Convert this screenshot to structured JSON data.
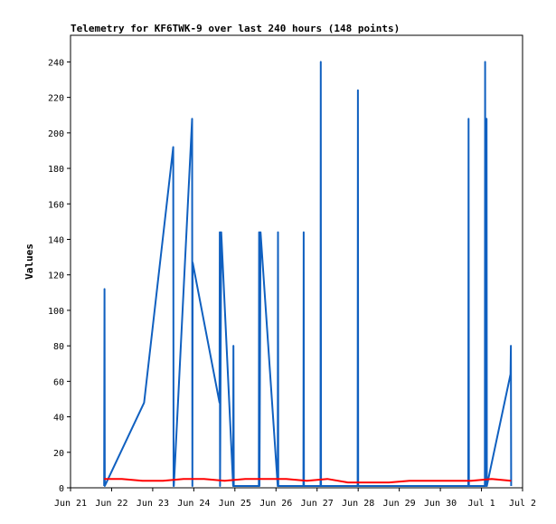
{
  "chart_data": {
    "type": "line",
    "title": "Telemetry for KF6TWK-9 over last 240 hours (148 points)",
    "xlabel": "",
    "ylabel": "Values",
    "ylim": [
      0,
      255
    ],
    "y_ticks": [
      0,
      20,
      40,
      60,
      80,
      100,
      120,
      140,
      160,
      180,
      200,
      220,
      240
    ],
    "xlim": [
      "Jun 21",
      "Jul 2"
    ],
    "x_tick_labels": [
      "Jun 21",
      "Jun 22",
      "Jun 23",
      "Jun 24",
      "Jun 25",
      "Jun 26",
      "Jun 27",
      "Jun 28",
      "Jun 29",
      "Jun 30",
      "Jul 1",
      "Jul 2"
    ],
    "grid": false,
    "series": [
      {
        "color": "#1060c0",
        "x": [
          "Jun 21 19:40",
          "Jun 21 19:50",
          "Jun 21 20:00",
          "Jun 22 19:00",
          "Jun 23 12:00",
          "Jun 23 12:10",
          "Jun 23 12:20",
          "Jun 23 23:00",
          "Jun 23 23:10",
          "Jun 23 23:20",
          "Jun 24 15:00",
          "Jun 24 15:10",
          "Jun 24 15:20",
          "Jun 24 16:00",
          "Jun 24 23:00",
          "Jun 24 23:10",
          "Jun 24 23:20",
          "Jun 25 14:00",
          "Jun 25 14:10",
          "Jun 25 14:20",
          "Jun 25 15:00",
          "Jun 26 01:00",
          "Jun 26 01:10",
          "Jun 26 01:20",
          "Jun 26 16:00",
          "Jun 26 16:10",
          "Jun 26 16:20",
          "Jun 27 02:00",
          "Jun 27 02:10",
          "Jun 27 02:20",
          "Jun 27 21:00",
          "Jun 27 21:10",
          "Jun 27 23:40",
          "Jun 27 23:50",
          "Jun 28 00:00",
          "Jun 28 02:00",
          "Jun 28 02:10",
          "Jun 30 16:20",
          "Jun 30 16:30",
          "Jun 30 16:40",
          "Jun 30 17:00",
          "Jul 1 02:00",
          "Jul 1 02:10",
          "Jul 1 02:20",
          "Jul 1 03:00",
          "Jul 1 03:10",
          "Jul 1 17:00",
          "Jul 1 17:10",
          "Jul 1 17:20"
        ],
        "values": [
          1,
          112,
          1,
          48,
          192,
          1,
          1,
          208,
          1,
          127,
          48,
          144,
          1,
          144,
          1,
          80,
          1,
          1,
          144,
          1,
          144,
          1,
          144,
          1,
          1,
          144,
          1,
          1,
          240,
          1,
          1,
          1,
          1,
          224,
          1,
          1,
          1,
          1,
          208,
          1,
          1,
          1,
          240,
          1,
          208,
          1,
          64,
          80,
          1
        ]
      },
      {
        "color": "#ff0000",
        "x": [
          "Jun 21 19:40",
          "Jun 22 06:00",
          "Jun 22 18:00",
          "Jun 23 06:00",
          "Jun 23 18:00",
          "Jun 24 06:00",
          "Jun 24 18:00",
          "Jun 25 06:00",
          "Jun 25 18:00",
          "Jun 26 06:00",
          "Jun 26 18:00",
          "Jun 27 06:00",
          "Jun 27 18:00",
          "Jun 28 06:00",
          "Jun 28 18:00",
          "Jun 29 06:00",
          "Jun 29 18:00",
          "Jun 30 06:00",
          "Jun 30 18:00",
          "Jul 1 06:00",
          "Jul 1 17:20"
        ],
        "values": [
          5,
          5,
          4,
          4,
          5,
          5,
          4,
          5,
          5,
          5,
          4,
          5,
          3,
          3,
          3,
          4,
          4,
          4,
          4,
          5,
          4
        ]
      }
    ]
  }
}
